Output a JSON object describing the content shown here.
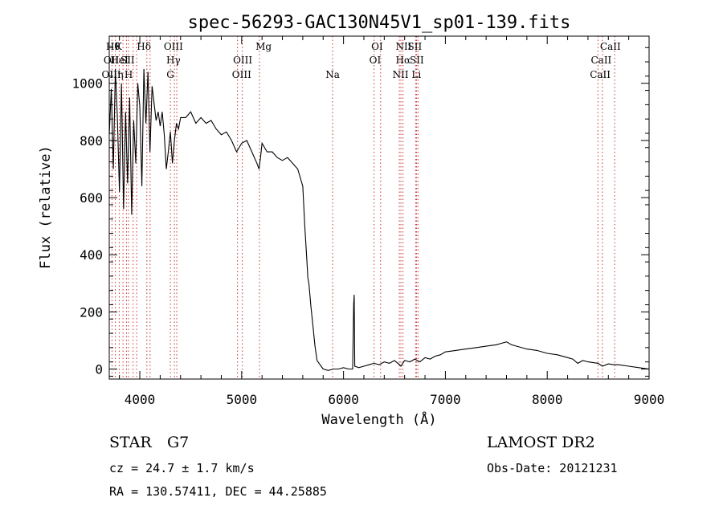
{
  "chart_data": {
    "type": "line",
    "title": "spec-56293-GAC130N45V1_sp01-139.fits",
    "xlabel": "Wavelength (Å)",
    "ylabel": "Flux (relative)",
    "xlim": [
      3700,
      9000
    ],
    "ylim": [
      -35,
      1165
    ],
    "x_ticks": [
      4000,
      5000,
      6000,
      7000,
      8000,
      9000
    ],
    "x_tick_labels": [
      "4000",
      "5000",
      "6000",
      "7000",
      "8000",
      "9000"
    ],
    "y_ticks": [
      0,
      200,
      400,
      600,
      800,
      1000
    ],
    "y_tick_labels": [
      "0",
      "200",
      "400",
      "600",
      "800",
      "1000"
    ],
    "grid": false,
    "series": [
      {
        "x": [
          3700,
          3720,
          3740,
          3760,
          3780,
          3800,
          3820,
          3840,
          3860,
          3880,
          3900,
          3920,
          3940,
          3960,
          3980,
          4000,
          4020,
          4040,
          4060,
          4080,
          4100,
          4120,
          4140,
          4160,
          4180,
          4200,
          4220,
          4240,
          4260,
          4280,
          4300,
          4320,
          4340,
          4360,
          4380,
          4400,
          4450,
          4500,
          4550,
          4600,
          4650,
          4700,
          4750,
          4800,
          4850,
          4900,
          4950,
          5000,
          5050,
          5100,
          5150,
          5170,
          5185,
          5200,
          5250,
          5300,
          5350,
          5400,
          5450,
          5500,
          5550,
          5600,
          5620,
          5640,
          5650,
          5660,
          5680,
          5700,
          5720,
          5740,
          5760,
          5780,
          5800,
          5850,
          5900,
          5950,
          6000,
          6050,
          6090,
          6100,
          6105,
          6110,
          6150,
          6200,
          6250,
          6300,
          6350,
          6400,
          6450,
          6500,
          6550,
          6563,
          6600,
          6650,
          6700,
          6750,
          6800,
          6850,
          6900,
          6950,
          7000,
          7100,
          7200,
          7300,
          7400,
          7500,
          7550,
          7600,
          7650,
          7700,
          7800,
          7900,
          8000,
          8100,
          8200,
          8250,
          8300,
          8350,
          8400,
          8500,
          8542,
          8600,
          8662,
          8700,
          8800,
          8900,
          9000
        ],
        "y": [
          820,
          980,
          700,
          1050,
          880,
          620,
          1000,
          560,
          900,
          650,
          950,
          540,
          870,
          720,
          1000,
          920,
          640,
          1050,
          860,
          1040,
          760,
          990,
          930,
          870,
          900,
          850,
          900,
          820,
          700,
          760,
          830,
          720,
          800,
          860,
          840,
          880,
          880,
          900,
          860,
          880,
          860,
          870,
          840,
          820,
          830,
          800,
          760,
          790,
          800,
          760,
          720,
          700,
          740,
          790,
          760,
          760,
          740,
          730,
          740,
          720,
          700,
          640,
          500,
          380,
          320,
          300,
          220,
          150,
          80,
          30,
          20,
          10,
          0,
          -5,
          0,
          0,
          5,
          0,
          0,
          230,
          260,
          10,
          5,
          10,
          15,
          20,
          15,
          25,
          20,
          30,
          15,
          10,
          30,
          25,
          35,
          25,
          40,
          35,
          45,
          50,
          60,
          65,
          70,
          75,
          80,
          85,
          90,
          95,
          85,
          80,
          70,
          65,
          55,
          50,
          40,
          35,
          20,
          30,
          25,
          20,
          10,
          18,
          15,
          15,
          10,
          5,
          0
        ]
      }
    ],
    "line_markers": {
      "top_row": [
        "Hθ",
        "K",
        "Hδ",
        "OIII",
        "Mg",
        "OI",
        "NII",
        "SII",
        "CaII"
      ],
      "row2": [
        "OII",
        "HeI",
        "SII",
        "Hγ",
        "OIII",
        "OI",
        "Hα",
        "SII",
        "CaII"
      ],
      "row3": [
        "OIII",
        "η",
        "H",
        "G",
        "OIII",
        "Na",
        "NII",
        "Li",
        "CaII"
      ],
      "wavelengths": [
        3727,
        3760,
        3798,
        3835,
        3869,
        3889,
        3934,
        3969,
        4069,
        4101,
        4300,
        4340,
        4363,
        4959,
        5007,
        5175,
        5893,
        6300,
        6364,
        6548,
        6563,
        6584,
        6708,
        6717,
        6731,
        8498,
        8542,
        8662
      ]
    }
  },
  "footer": {
    "class_label": "STAR",
    "subclass": "G7",
    "survey": "LAMOST DR2",
    "cz": "cz = 24.7 ± 1.7 km/s",
    "obs_date": "Obs-Date: 20121231",
    "coords": "RA = 130.57411, DEC =  44.25885"
  }
}
